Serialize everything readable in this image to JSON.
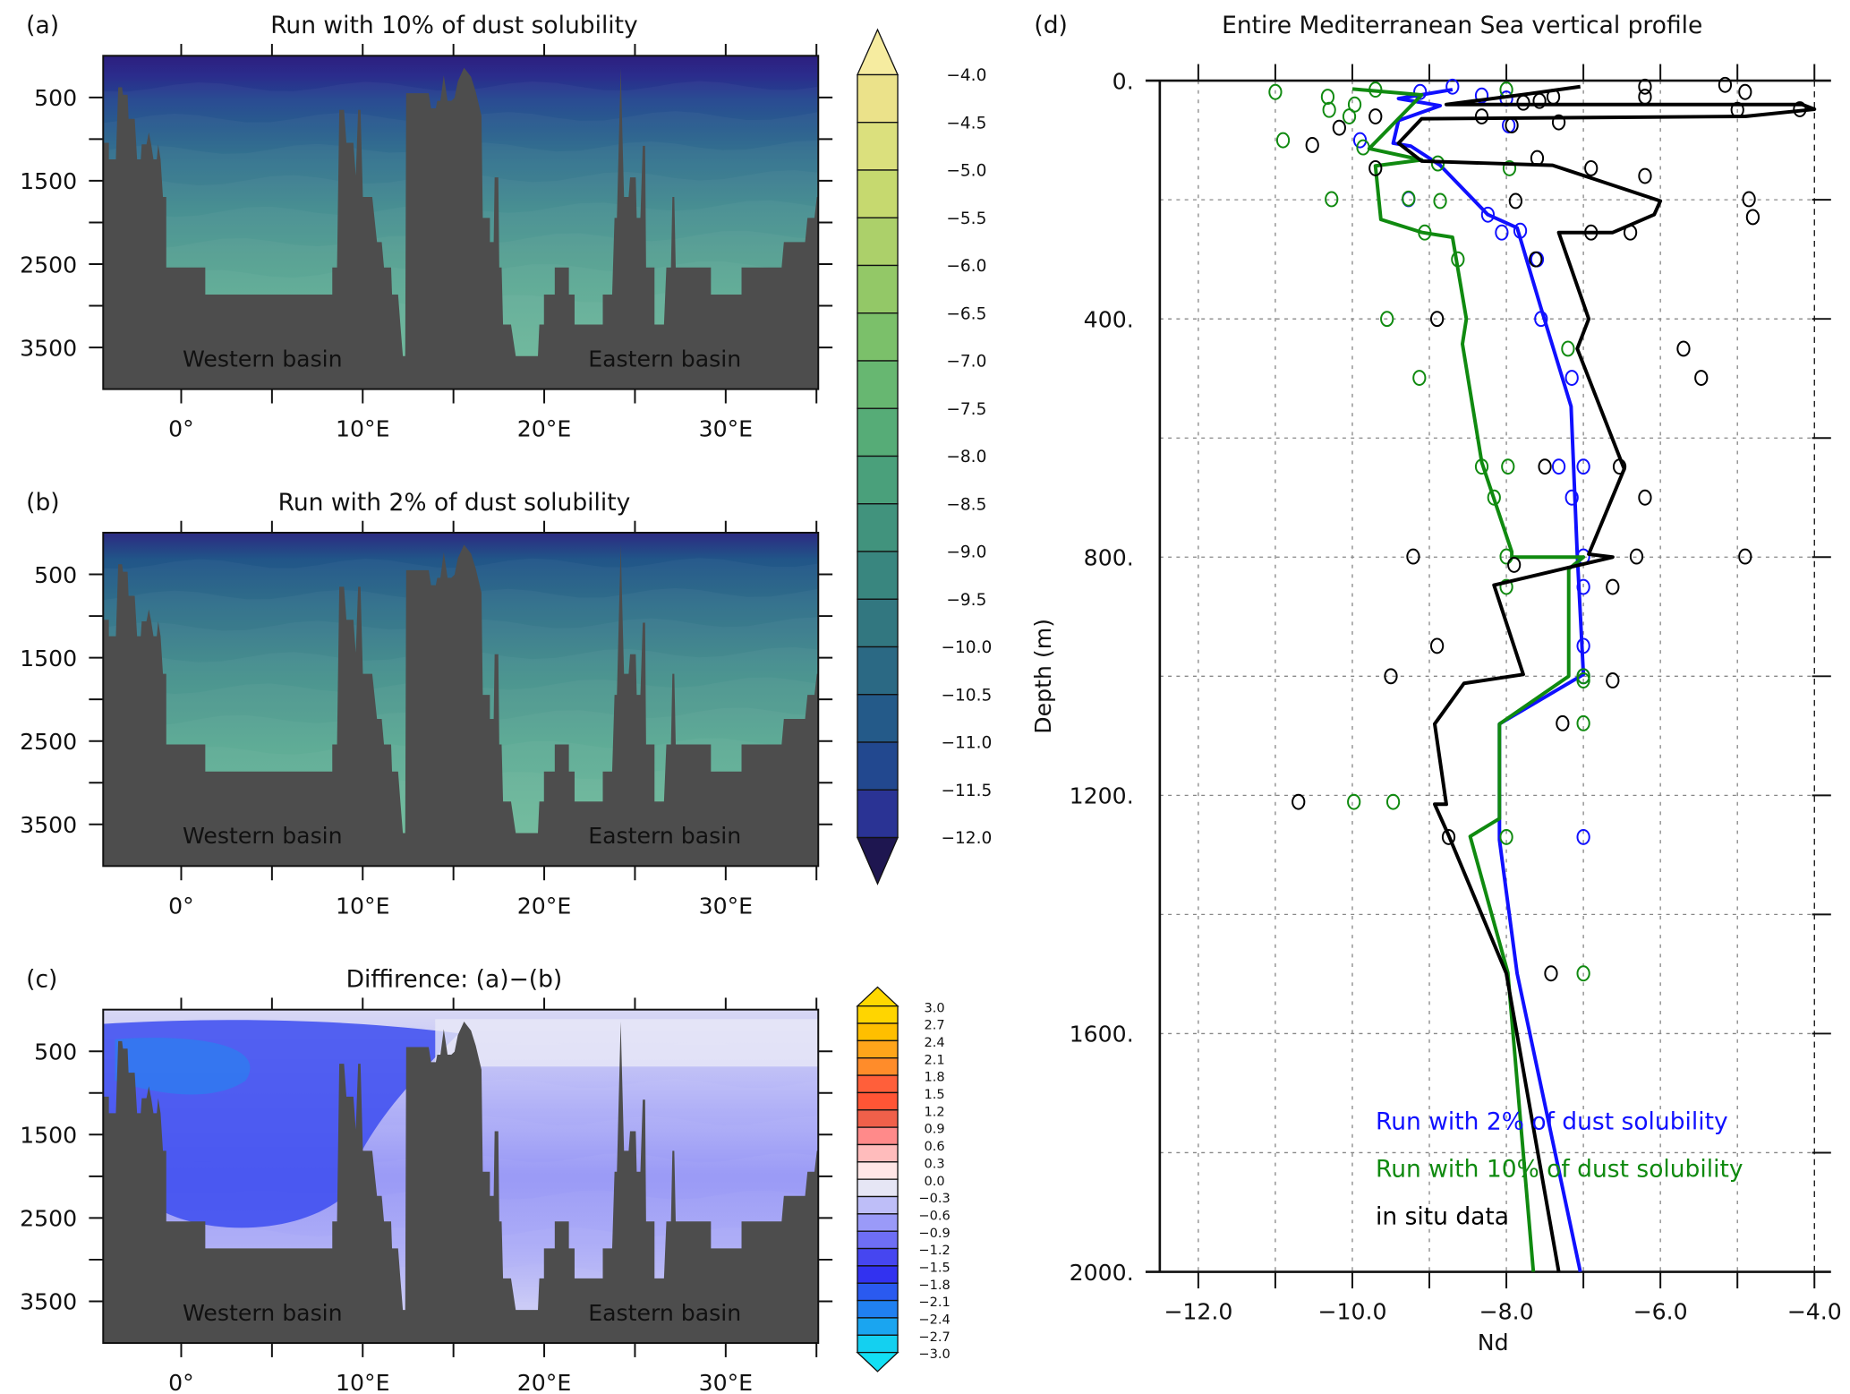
{
  "panels": [
    {
      "label": "(a)",
      "title": "Run with 10% of dust solubility",
      "basin_labels": [
        "Western basin",
        "Eastern basin"
      ],
      "colorbar": "nd"
    },
    {
      "label": "(b)",
      "title": "Run with 2% of dust solubility",
      "basin_labels": [
        "Western basin",
        "Eastern basin"
      ],
      "colorbar": "nd"
    },
    {
      "label": "(c)",
      "title": "Diffirence: (a)−(b)",
      "basin_labels": [
        "Western basin",
        "Eastern basin"
      ],
      "colorbar": "diff"
    }
  ],
  "section_axes": {
    "ytick_values": [
      500,
      1500,
      2500,
      3500
    ],
    "ytick_labels": [
      "500",
      "1500",
      "2500",
      "3500"
    ],
    "ylim": [
      0,
      4000
    ],
    "xtick_values": [
      0,
      10,
      20,
      30
    ],
    "xtick_labels": [
      "0°",
      "10°E",
      "20°E",
      "30°E"
    ],
    "xlim": [
      -4.3,
      35.1
    ],
    "seafloor_color": "#4d4d4d"
  },
  "colorbars": {
    "nd": {
      "labels": [
        "−4.0",
        "−4.5",
        "−5.0",
        "−5.5",
        "−6.0",
        "−6.5",
        "−7.0",
        "−7.5",
        "−8.0",
        "−8.5",
        "−9.0",
        "−9.5",
        "−10.0",
        "−10.5",
        "−11.0",
        "−11.5",
        "−12.0"
      ],
      "top_color": "#f6eca0",
      "colors": [
        "#ebe28a",
        "#dbe07d",
        "#c6d96f",
        "#acd06a",
        "#93c867",
        "#7bc06a",
        "#67b771",
        "#56ac77",
        "#4aa07b",
        "#41937d",
        "#39867f",
        "#327780",
        "#2b6984",
        "#245a89",
        "#22488f",
        "#2a3394"
      ],
      "bottom_color": "#1e1650"
    },
    "diff": {
      "labels": [
        "3.0",
        "2.7",
        "2.4",
        "2.1",
        "1.8",
        "1.5",
        "1.2",
        "0.9",
        "0.6",
        "0.3",
        "0.0",
        "−0.3",
        "−0.6",
        "−0.9",
        "−1.2",
        "−1.5",
        "−1.8",
        "−2.1",
        "−2.4",
        "−2.7",
        "−3.0"
      ],
      "top_color": "#ffd800",
      "colors": [
        "#ffd500",
        "#ffbf00",
        "#ffa51a",
        "#ff8c2a",
        "#ff5f3a",
        "#ff5535",
        "#f0604a",
        "#ff8a8a",
        "#ffbcbc",
        "#ffe6e6",
        "#e6e6f5",
        "#bebef8",
        "#9a9af8",
        "#6e6ef5",
        "#4646f0",
        "#3232f0",
        "#2a5af0",
        "#2080f0",
        "#1aa5f0",
        "#14d0f0"
      ],
      "bottom_color": "#12e0f5"
    }
  },
  "chart_data": [
    {
      "type": "heatmap",
      "panel": "(a)",
      "title": "Run with 10% of dust solubility",
      "xlabel": "",
      "ylabel": "",
      "xlim": [
        -4.3,
        35.1
      ],
      "ylim": [
        4000,
        0
      ],
      "colorbar": "nd",
      "annotations": [
        "Western basin",
        "Eastern basin"
      ]
    },
    {
      "type": "heatmap",
      "panel": "(b)",
      "title": "Run with 2% of dust solubility",
      "xlabel": "",
      "ylabel": "",
      "xlim": [
        -4.3,
        35.1
      ],
      "ylim": [
        4000,
        0
      ],
      "colorbar": "nd",
      "annotations": [
        "Western basin",
        "Eastern basin"
      ]
    },
    {
      "type": "heatmap",
      "panel": "(c)",
      "title": "Diffirence: (a)−(b)",
      "xlabel": "",
      "ylabel": "",
      "xlim": [
        -4.3,
        35.1
      ],
      "ylim": [
        4000,
        0
      ],
      "colorbar": "diff",
      "annotations": [
        "Western basin",
        "Eastern basin"
      ]
    },
    {
      "type": "line",
      "panel": "(d)",
      "title": "Entire Mediterranean Sea vertical profile",
      "xlabel": "Nd",
      "ylabel": "Depth (m)",
      "xlim": [
        -12.5,
        -4.0
      ],
      "ylim": [
        2000,
        0
      ],
      "grid": true,
      "legend_placement": "bottom-right",
      "xtick_values": [
        -12,
        -10,
        -8,
        -6,
        -4
      ],
      "xtick_labels": [
        "−12.0",
        "−10.0",
        "−8.0",
        "−6.0",
        "−4.0"
      ],
      "ytick_values": [
        0,
        400,
        800,
        1200,
        1600,
        2000
      ],
      "ytick_labels": [
        "0.",
        "400.",
        "800.",
        "1200.",
        "1600.",
        "2000."
      ],
      "series": [
        {
          "name": "Run with 2% of dust solubility",
          "color": "#1010ff",
          "line": [
            [
              -8.7,
              15
            ],
            [
              -9.4,
              30
            ],
            [
              -8.86,
              42
            ],
            [
              -9.4,
              67
            ],
            [
              -9.47,
              105
            ],
            [
              -9.24,
              110
            ],
            [
              -8.86,
              142
            ],
            [
              -8.24,
              225
            ],
            [
              -7.86,
              247
            ],
            [
              -7.55,
              382
            ],
            [
              -7.16,
              547
            ],
            [
              -7.08,
              795
            ],
            [
              -7.0,
              997
            ],
            [
              -8.09,
              1080
            ],
            [
              -8.09,
              1275
            ],
            [
              -7.86,
              1499
            ],
            [
              -7.04,
              2000
            ]
          ],
          "points": [
            [
              -8.7,
              10
            ],
            [
              -9.12,
              19
            ],
            [
              -8.32,
              25
            ],
            [
              -8.0,
              30
            ],
            [
              -7.97,
              75
            ],
            [
              -9.9,
              100
            ],
            [
              -9.27,
              199
            ],
            [
              -8.24,
              225
            ],
            [
              -8.06,
              255
            ],
            [
              -7.82,
              252
            ],
            [
              -7.6,
              300
            ],
            [
              -7.55,
              400
            ],
            [
              -7.15,
              499
            ],
            [
              -7.32,
              648
            ],
            [
              -7.0,
              648
            ],
            [
              -7.15,
              700
            ],
            [
              -7.0,
              799
            ],
            [
              -7.0,
              850
            ],
            [
              -7.0,
              949
            ],
            [
              -7.0,
              1000
            ],
            [
              -7.0,
              1270
            ]
          ]
        },
        {
          "name": "Run with 10% of dust solubility",
          "color": "#108a10",
          "line": [
            [
              -10.0,
              14
            ],
            [
              -9.1,
              24
            ],
            [
              -9.78,
              114
            ],
            [
              -9.1,
              133
            ],
            [
              -9.7,
              143
            ],
            [
              -9.63,
              233
            ],
            [
              -9.09,
              255
            ],
            [
              -8.7,
              263
            ],
            [
              -8.66,
              293
            ],
            [
              -8.52,
              400
            ],
            [
              -8.57,
              442
            ],
            [
              -8.32,
              641
            ],
            [
              -7.93,
              791
            ],
            [
              -7.93,
              800
            ],
            [
              -7.0,
              800
            ],
            [
              -7.19,
              820
            ],
            [
              -7.19,
              1000
            ],
            [
              -8.09,
              1080
            ],
            [
              -8.09,
              1239
            ],
            [
              -8.47,
              1269
            ],
            [
              -7.98,
              1498
            ],
            [
              -7.65,
              2000
            ]
          ],
          "points": [
            [
              -11.0,
              19
            ],
            [
              -10.9,
              100
            ],
            [
              -10.32,
              27
            ],
            [
              -10.3,
              49
            ],
            [
              -10.04,
              60
            ],
            [
              -9.97,
              40
            ],
            [
              -9.7,
              15
            ],
            [
              -9.86,
              112
            ],
            [
              -10.27,
              199
            ],
            [
              -9.27,
              198
            ],
            [
              -8.86,
              202
            ],
            [
              -8.89,
              139
            ],
            [
              -7.96,
              147
            ],
            [
              -8.0,
              15
            ],
            [
              -8.63,
              300
            ],
            [
              -9.06,
              255
            ],
            [
              -9.55,
              400
            ],
            [
              -7.2,
              450
            ],
            [
              -9.13,
              499
            ],
            [
              -8.32,
              648
            ],
            [
              -7.98,
              648
            ],
            [
              -8.16,
              700
            ],
            [
              -8.0,
              799
            ],
            [
              -8.0,
              850
            ],
            [
              -7.0,
              1000
            ],
            [
              -7.0,
              1007
            ],
            [
              -7.0,
              1079
            ],
            [
              -9.98,
              1211
            ],
            [
              -9.47,
              1211
            ],
            [
              -8.0,
              1270
            ],
            [
              -7.0,
              1499
            ]
          ]
        },
        {
          "name": "in situ data",
          "color": "#000000",
          "line": [
            [
              -7.04,
              10
            ],
            [
              -7.7,
              22
            ],
            [
              -8.78,
              40
            ],
            [
              -4.16,
              40
            ],
            [
              -4.0,
              48
            ],
            [
              -4.9,
              60
            ],
            [
              -9.1,
              64
            ],
            [
              -9.4,
              105
            ],
            [
              -9.1,
              135
            ],
            [
              -7.4,
              142
            ],
            [
              -6.0,
              202
            ],
            [
              -6.08,
              225
            ],
            [
              -6.62,
              255
            ],
            [
              -7.32,
              255
            ],
            [
              -6.93,
              400
            ],
            [
              -7.08,
              450
            ],
            [
              -6.47,
              652
            ],
            [
              -6.93,
              795
            ],
            [
              -6.62,
              800
            ],
            [
              -8.16,
              847
            ],
            [
              -7.78,
              997
            ],
            [
              -8.55,
              1012
            ],
            [
              -8.93,
              1080
            ],
            [
              -8.78,
              1215
            ],
            [
              -8.93,
              1215
            ],
            [
              -8.75,
              1267
            ],
            [
              -8.0,
              1499
            ],
            [
              -7.32,
              2000
            ]
          ],
          "points": [
            [
              -5.16,
              7
            ],
            [
              -4.9,
              19
            ],
            [
              -6.2,
              10
            ],
            [
              -6.2,
              27
            ],
            [
              -4.19,
              48
            ],
            [
              -5.0,
              49
            ],
            [
              -7.39,
              27
            ],
            [
              -7.57,
              34
            ],
            [
              -7.78,
              37
            ],
            [
              -8.32,
              60
            ],
            [
              -7.93,
              75
            ],
            [
              -7.32,
              70
            ],
            [
              -9.7,
              60
            ],
            [
              -10.17,
              79
            ],
            [
              -10.52,
              108
            ],
            [
              -9.7,
              147
            ],
            [
              -7.6,
              130
            ],
            [
              -6.9,
              147
            ],
            [
              -6.2,
              160
            ],
            [
              -4.85,
              199
            ],
            [
              -4.8,
              229
            ],
            [
              -7.88,
              202
            ],
            [
              -6.9,
              255
            ],
            [
              -6.39,
              255
            ],
            [
              -7.62,
              300
            ],
            [
              -8.9,
              400
            ],
            [
              -5.7,
              450
            ],
            [
              -5.47,
              499
            ],
            [
              -7.5,
              648
            ],
            [
              -6.53,
              648
            ],
            [
              -6.2,
              700
            ],
            [
              -9.21,
              799
            ],
            [
              -6.31,
              799
            ],
            [
              -4.9,
              799
            ],
            [
              -6.62,
              850
            ],
            [
              -7.9,
              813
            ],
            [
              -8.9,
              949
            ],
            [
              -9.5,
              1000
            ],
            [
              -6.62,
              1007
            ],
            [
              -7.27,
              1079
            ],
            [
              -10.7,
              1211
            ],
            [
              -8.75,
              1270
            ],
            [
              -7.42,
              1499
            ]
          ]
        }
      ]
    }
  ]
}
